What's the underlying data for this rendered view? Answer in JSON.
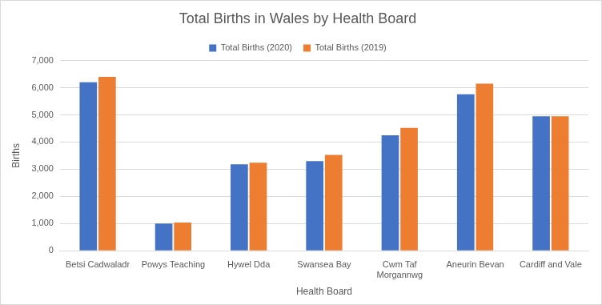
{
  "chart_data": {
    "type": "bar",
    "title": "Total Births in Wales by Health Board",
    "x_label": "Health Board",
    "y_label": "Births",
    "categories": [
      "Betsi Cadwaladr",
      "Powys Teaching",
      "Hywel Dda",
      "Swansea Bay",
      "Cwm Taf Morgannwg",
      "Aneurin Bevan",
      "Cardiff and Vale"
    ],
    "series": [
      {
        "name": "Total Births (2020)",
        "color": "#4472c4",
        "values": [
          6200,
          1000,
          3180,
          3300,
          4250,
          5760,
          4950
        ]
      },
      {
        "name": "Total Births (2019)",
        "color": "#ed7d31",
        "values": [
          6400,
          1040,
          3240,
          3530,
          4520,
          6150,
          4950
        ]
      }
    ],
    "ylim": [
      0,
      7000
    ],
    "yticks": [
      0,
      {
        "value": 1000,
        "label": "1,000"
      },
      {
        "value": 2000,
        "label": "2,000"
      },
      {
        "value": 3000,
        "label": "3,000"
      },
      {
        "value": 4000,
        "label": "4,000"
      },
      {
        "value": 5000,
        "label": "5,000"
      },
      {
        "value": 6000,
        "label": "6,000"
      },
      {
        "value": 7000,
        "label": "7,000"
      }
    ],
    "grid": true,
    "legend": "top"
  }
}
